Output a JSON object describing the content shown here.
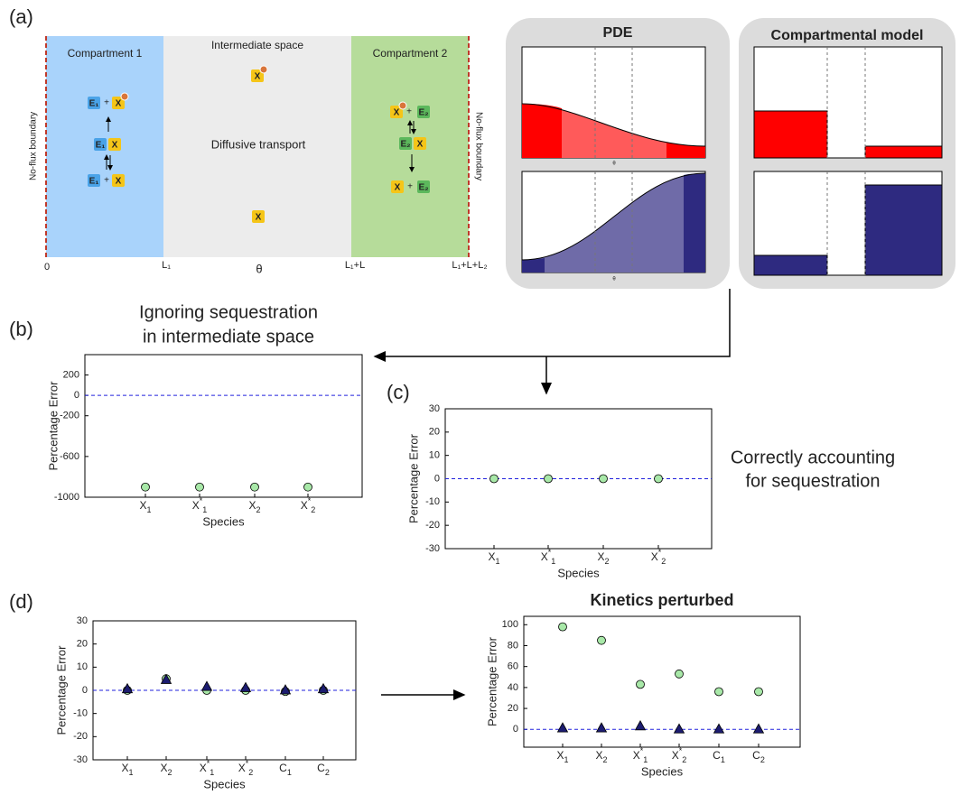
{
  "panel_labels": [
    "(a)",
    "(b)",
    "(c)",
    "(d)"
  ],
  "diagram": {
    "regions": [
      "Compartment 1",
      "Intermediate space",
      "Compartment 2"
    ],
    "center_label": "Diffusive transport",
    "boundary_label": "No-flux boundary",
    "species": [
      "E₁",
      "X",
      "E₂"
    ],
    "plus": "+",
    "axis_ticks": [
      "0",
      "L₁",
      "L₁+L",
      "L₁+L+L₂"
    ],
    "axis_label": "θ",
    "pde_title": "PDE",
    "compartmental_title": "Compartmental model"
  },
  "chart_data": [
    {
      "type": "scatter",
      "title": [
        "Ignoring sequestration",
        "in intermediate space"
      ],
      "categories": [
        "X1",
        "X*1",
        "X2",
        "X*2"
      ],
      "series": [
        {
          "color": "#a8e8a8",
          "marker": "circle",
          "values": [
            -900,
            -900,
            -900,
            -900
          ]
        }
      ],
      "ylim": [
        -1000,
        400
      ],
      "yticks": [
        200,
        0,
        -200,
        -600,
        -1000
      ],
      "hline": 0,
      "xlabel": "Species",
      "ylabel": "Percentage Error"
    },
    {
      "type": "scatter",
      "annotation": [
        "Correctly accounting",
        "for sequestration"
      ],
      "categories": [
        "X1",
        "X*1",
        "X2",
        "X*2"
      ],
      "series": [
        {
          "color": "#a8e8a8",
          "marker": "circle",
          "values": [
            0,
            0,
            0,
            0
          ]
        }
      ],
      "ylim": [
        -30,
        30
      ],
      "yticks": [
        30,
        20,
        10,
        0,
        -10,
        -20,
        -30
      ],
      "hline": 0,
      "xlabel": "Species",
      "ylabel": "Percentage Error"
    },
    {
      "type": "scatter",
      "categories": [
        "X1",
        "X2",
        "X*1",
        "X*2",
        "C1",
        "C2"
      ],
      "series": [
        {
          "color": "#a8e8a8",
          "marker": "circle",
          "values": [
            0,
            5,
            0,
            0,
            -0.5,
            0
          ]
        },
        {
          "color": "#1c1c70",
          "marker": "triangle",
          "values": [
            0.5,
            4.5,
            1.5,
            1,
            0,
            0.5
          ]
        }
      ],
      "ylim": [
        -30,
        30
      ],
      "yticks": [
        30,
        20,
        10,
        0,
        -10,
        -20,
        -30
      ],
      "hline": 0,
      "xlabel": "Species",
      "ylabel": "Percentage Error"
    },
    {
      "type": "scatter",
      "title": "Kinetics perturbed",
      "categories": [
        "X1",
        "X2",
        "X*1",
        "X*2",
        "C1",
        "C2"
      ],
      "series": [
        {
          "color": "#a8e8a8",
          "marker": "circle",
          "values": [
            98,
            85,
            43,
            53,
            36,
            36
          ]
        },
        {
          "color": "#1c1c70",
          "marker": "triangle",
          "values": [
            1,
            1,
            3,
            0,
            0,
            0
          ]
        }
      ],
      "ylim": [
        -17,
        108
      ],
      "yticks": [
        100,
        80,
        60,
        40,
        20,
        0
      ],
      "hline": 0,
      "xlabel": "Species",
      "ylabel": "Percentage Error"
    }
  ]
}
